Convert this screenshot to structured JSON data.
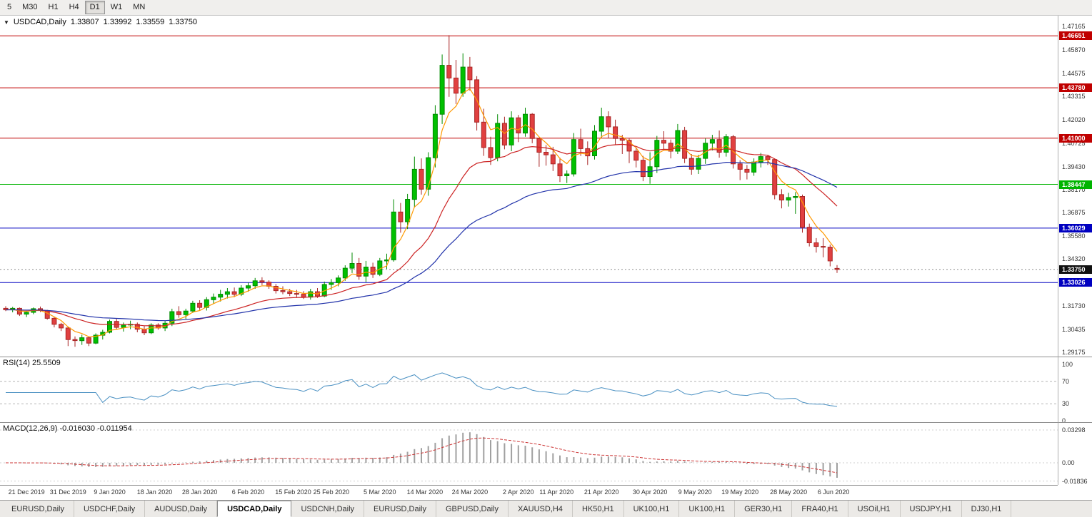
{
  "toolbar": {
    "timeframes": [
      {
        "label": "5",
        "active": false
      },
      {
        "label": "M30",
        "active": false
      },
      {
        "label": "H1",
        "active": false
      },
      {
        "label": "H4",
        "active": false
      },
      {
        "label": "D1",
        "active": true
      },
      {
        "label": "W1",
        "active": false
      },
      {
        "label": "MN",
        "active": false
      }
    ]
  },
  "chart_header": {
    "dropdown_icon": "▼",
    "symbol": "USDCAD,Daily",
    "open": "1.33807",
    "high": "1.33992",
    "low": "1.33559",
    "close": "1.33750"
  },
  "price_axis": {
    "ticks": [
      "1.47165",
      "1.45870",
      "1.44575",
      "1.43315",
      "1.42020",
      "1.40725",
      "1.39430",
      "1.38170",
      "1.36875",
      "1.35580",
      "1.34320",
      "1.31730",
      "1.30435",
      "1.29175"
    ]
  },
  "levels": [
    {
      "label": "1.46651",
      "value": 1.46651,
      "color": "#c00000"
    },
    {
      "label": "1.43780",
      "value": 1.4378,
      "color": "#c00000"
    },
    {
      "label": "1.41000",
      "value": 1.41,
      "color": "#c00000"
    },
    {
      "label": "1.38447",
      "value": 1.38447,
      "color": "#00b400"
    },
    {
      "label": "1.36029",
      "value": 1.36029,
      "color": "#0000c0"
    },
    {
      "label": "1.33026",
      "value": 1.33026,
      "color": "#0000c0"
    }
  ],
  "current_price": {
    "label": "1.33750",
    "value": 1.3375,
    "badge_color": "#111111"
  },
  "indicators": {
    "rsi": {
      "label": "RSI(14) 25.5509",
      "value": 25.5509,
      "axis": [
        {
          "label": "100",
          "value": 100
        },
        {
          "label": "70",
          "value": 70
        },
        {
          "label": "30",
          "value": 30
        },
        {
          "label": "0",
          "value": 0
        }
      ],
      "dashed_levels": [
        70,
        30
      ]
    },
    "macd": {
      "label": "MACD(12,26,9) -0.016030 -0.011954",
      "value": -0.01603,
      "signal": -0.011954,
      "axis": [
        {
          "label": "0.03298",
          "value": 0.03298
        },
        {
          "label": "0.00",
          "value": 0
        },
        {
          "label": "-0.01836",
          "value": -0.01836
        }
      ]
    }
  },
  "date_axis": [
    {
      "label": "21 Dec 2019",
      "i": 3
    },
    {
      "label": "31 Dec 2019",
      "i": 9
    },
    {
      "label": "9 Jan 2020",
      "i": 15
    },
    {
      "label": "18 Jan 2020",
      "i": 21.5
    },
    {
      "label": "28 Jan 2020",
      "i": 28
    },
    {
      "label": "6 Feb 2020",
      "i": 35
    },
    {
      "label": "15 Feb 2020",
      "i": 41.5
    },
    {
      "label": "25 Feb 2020",
      "i": 47
    },
    {
      "label": "5 Mar 2020",
      "i": 54
    },
    {
      "label": "14 Mar 2020",
      "i": 60.5
    },
    {
      "label": "24 Mar 2020",
      "i": 67
    },
    {
      "label": "2 Apr 2020",
      "i": 74
    },
    {
      "label": "11 Apr 2020",
      "i": 79.5
    },
    {
      "label": "21 Apr 2020",
      "i": 86
    },
    {
      "label": "30 Apr 2020",
      "i": 93
    },
    {
      "label": "9 May 2020",
      "i": 99.5
    },
    {
      "label": "19 May 2020",
      "i": 106
    },
    {
      "label": "28 May 2020",
      "i": 113
    },
    {
      "label": "6 Jun 2020",
      "i": 119.5
    }
  ],
  "tabs": [
    {
      "label": "EURUSD,Daily",
      "active": false
    },
    {
      "label": "USDCHF,Daily",
      "active": false
    },
    {
      "label": "AUDUSD,Daily",
      "active": false
    },
    {
      "label": "USDCAD,Daily",
      "active": true
    },
    {
      "label": "USDCNH,Daily",
      "active": false
    },
    {
      "label": "EURUSD,Daily",
      "active": false
    },
    {
      "label": "GBPUSD,Daily",
      "active": false
    },
    {
      "label": "XAUUSD,H4",
      "active": false
    },
    {
      "label": "HK50,H1",
      "active": false
    },
    {
      "label": "UK100,H1",
      "active": false
    },
    {
      "label": "UK100,H1",
      "active": false
    },
    {
      "label": "GER30,H1",
      "active": false
    },
    {
      "label": "FRA40,H1",
      "active": false
    },
    {
      "label": "USOil,H1",
      "active": false
    },
    {
      "label": "USDJPY,H1",
      "active": false
    },
    {
      "label": "DJ30,H1",
      "active": false
    }
  ],
  "colors": {
    "up": "#00c000",
    "up_border": "#008a00",
    "down": "#e04040",
    "down_border": "#a82525",
    "ma_fast": "#ff9900",
    "ma_mid": "#cc2222",
    "ma_slow": "#2233aa",
    "rsi_line": "#4a90c2",
    "macd_hist": "#a0a0a0",
    "macd_signal": "#cc3333",
    "current_line": "#909090"
  },
  "chart_data": {
    "type": "candlestick",
    "symbol": "USDCAD",
    "timeframe": "Daily",
    "title": "USDCAD,Daily 1.33807 1.33992 1.33559 1.33750",
    "ohlc_display": {
      "open": 1.33807,
      "high": 1.33992,
      "low": 1.33559,
      "close": 1.3375
    },
    "y_range": [
      1.2894,
      1.4776
    ],
    "x_range_dates": [
      "17 Dec 2019",
      "8 Jun 2020"
    ],
    "horizontal_levels": [
      1.46651,
      1.4378,
      1.41,
      1.38447,
      1.36029,
      1.33026
    ],
    "candles": [
      [
        1.316,
        1.3172,
        1.3145,
        1.3152
      ],
      [
        1.3152,
        1.3168,
        1.3138,
        1.316
      ],
      [
        1.316,
        1.3165,
        1.3118,
        1.3128
      ],
      [
        1.3128,
        1.3145,
        1.3112,
        1.3138
      ],
      [
        1.3138,
        1.3165,
        1.3128,
        1.3158
      ],
      [
        1.3158,
        1.317,
        1.314,
        1.3148
      ],
      [
        1.3148,
        1.3152,
        1.3098,
        1.3105
      ],
      [
        1.3105,
        1.3112,
        1.3055,
        1.3072
      ],
      [
        1.3072,
        1.308,
        1.3035,
        1.3052
      ],
      [
        1.3052,
        1.3058,
        1.2952,
        1.2988
      ],
      [
        1.2988,
        1.3005,
        1.2948,
        1.2982
      ],
      [
        1.2982,
        1.3015,
        1.2958,
        1.2998
      ],
      [
        1.2998,
        1.3005,
        1.2952,
        1.2968
      ],
      [
        1.2968,
        1.3022,
        1.2962,
        1.3012
      ],
      [
        1.3012,
        1.3042,
        1.2988,
        1.3028
      ],
      [
        1.3028,
        1.3098,
        1.3022,
        1.3088
      ],
      [
        1.3088,
        1.3102,
        1.3042,
        1.3055
      ],
      [
        1.3055,
        1.3082,
        1.3032,
        1.3068
      ],
      [
        1.3068,
        1.3092,
        1.3045,
        1.3072
      ],
      [
        1.3072,
        1.3082,
        1.3028,
        1.3045
      ],
      [
        1.3045,
        1.3062,
        1.3012,
        1.3025
      ],
      [
        1.3025,
        1.3078,
        1.3018,
        1.3068
      ],
      [
        1.3068,
        1.3078,
        1.3042,
        1.3052
      ],
      [
        1.3052,
        1.3092,
        1.3035,
        1.3078
      ],
      [
        1.3078,
        1.3158,
        1.3062,
        1.3142
      ],
      [
        1.3142,
        1.3172,
        1.3108,
        1.3125
      ],
      [
        1.3125,
        1.3158,
        1.3102,
        1.3145
      ],
      [
        1.3145,
        1.3202,
        1.3135,
        1.3188
      ],
      [
        1.3188,
        1.3205,
        1.3152,
        1.3165
      ],
      [
        1.3165,
        1.3222,
        1.3148,
        1.3208
      ],
      [
        1.3208,
        1.3242,
        1.3185,
        1.3222
      ],
      [
        1.3222,
        1.3262,
        1.3198,
        1.3238
      ],
      [
        1.3238,
        1.3272,
        1.3215,
        1.3252
      ],
      [
        1.3252,
        1.3275,
        1.3222,
        1.3238
      ],
      [
        1.3238,
        1.3288,
        1.3228,
        1.3272
      ],
      [
        1.3272,
        1.3302,
        1.3252,
        1.3285
      ],
      [
        1.3285,
        1.3328,
        1.3268,
        1.3312
      ],
      [
        1.3312,
        1.3332,
        1.3288,
        1.3305
      ],
      [
        1.3305,
        1.3315,
        1.3268,
        1.3282
      ],
      [
        1.3282,
        1.3295,
        1.3242,
        1.3258
      ],
      [
        1.3258,
        1.3282,
        1.3238,
        1.3252
      ],
      [
        1.3252,
        1.3268,
        1.3228,
        1.3242
      ],
      [
        1.3242,
        1.3262,
        1.3218,
        1.3238
      ],
      [
        1.3238,
        1.3255,
        1.3212,
        1.3222
      ],
      [
        1.3222,
        1.3268,
        1.3208,
        1.3252
      ],
      [
        1.3252,
        1.3272,
        1.3218,
        1.3228
      ],
      [
        1.3228,
        1.3308,
        1.3222,
        1.3292
      ],
      [
        1.3292,
        1.3322,
        1.3262,
        1.3302
      ],
      [
        1.3302,
        1.3342,
        1.3282,
        1.3328
      ],
      [
        1.3328,
        1.3398,
        1.3312,
        1.3382
      ],
      [
        1.3382,
        1.3468,
        1.3355,
        1.3408
      ],
      [
        1.3408,
        1.3438,
        1.3318,
        1.3338
      ],
      [
        1.3338,
        1.3422,
        1.3305,
        1.3388
      ],
      [
        1.3388,
        1.3412,
        1.3328,
        1.3348
      ],
      [
        1.3348,
        1.3438,
        1.3338,
        1.3422
      ],
      [
        1.3422,
        1.3462,
        1.3378,
        1.3428
      ],
      [
        1.3428,
        1.3762,
        1.3418,
        1.3692
      ],
      [
        1.3692,
        1.3742,
        1.3578,
        1.3638
      ],
      [
        1.3638,
        1.3792,
        1.3598,
        1.3762
      ],
      [
        1.3762,
        1.3998,
        1.3718,
        1.3928
      ],
      [
        1.3928,
        1.3988,
        1.3788,
        1.3818
      ],
      [
        1.3818,
        1.4022,
        1.3782,
        1.3992
      ],
      [
        1.3992,
        1.4282,
        1.3938,
        1.4232
      ],
      [
        1.4232,
        1.4562,
        1.4178,
        1.4502
      ],
      [
        1.4502,
        1.4668,
        1.4328,
        1.4432
      ],
      [
        1.4432,
        1.4532,
        1.4288,
        1.4348
      ],
      [
        1.4348,
        1.4568,
        1.4328,
        1.4492
      ],
      [
        1.4492,
        1.4548,
        1.4362,
        1.4422
      ],
      [
        1.4422,
        1.4442,
        1.4142,
        1.4188
      ],
      [
        1.4188,
        1.4262,
        1.4002,
        1.4048
      ],
      [
        1.4048,
        1.4108,
        1.3952,
        1.3992
      ],
      [
        1.3992,
        1.4232,
        1.3972,
        1.4182
      ],
      [
        1.4182,
        1.4218,
        1.4038,
        1.4062
      ],
      [
        1.4062,
        1.4248,
        1.4028,
        1.4212
      ],
      [
        1.4212,
        1.4228,
        1.4078,
        1.4128
      ],
      [
        1.4128,
        1.4268,
        1.4108,
        1.4232
      ],
      [
        1.4232,
        1.4238,
        1.4072,
        1.4098
      ],
      [
        1.4098,
        1.4102,
        1.3942,
        1.4022
      ],
      [
        1.4022,
        1.4062,
        1.3948,
        1.4008
      ],
      [
        1.4008,
        1.4052,
        1.3918,
        1.3958
      ],
      [
        1.3958,
        1.3992,
        1.3858,
        1.3892
      ],
      [
        1.3892,
        1.3922,
        1.3852,
        1.3902
      ],
      [
        1.3902,
        1.4128,
        1.3888,
        1.4092
      ],
      [
        1.4092,
        1.4152,
        1.4002,
        1.4042
      ],
      [
        1.4042,
        1.4082,
        1.3952,
        1.4002
      ],
      [
        1.4002,
        1.4172,
        1.3982,
        1.4138
      ],
      [
        1.4138,
        1.4268,
        1.4102,
        1.4218
      ],
      [
        1.4218,
        1.4248,
        1.4102,
        1.4162
      ],
      [
        1.4162,
        1.4202,
        1.4062,
        1.4098
      ],
      [
        1.4098,
        1.4118,
        1.4012,
        1.4088
      ],
      [
        1.4088,
        1.4098,
        1.3962,
        1.4028
      ],
      [
        1.4028,
        1.4048,
        1.3938,
        1.3978
      ],
      [
        1.3978,
        1.4002,
        1.3862,
        1.3888
      ],
      [
        1.3888,
        1.4022,
        1.3848,
        1.3942
      ],
      [
        1.3942,
        1.4112,
        1.3908,
        1.4088
      ],
      [
        1.4088,
        1.4138,
        1.4032,
        1.4072
      ],
      [
        1.4072,
        1.4092,
        1.3988,
        1.4028
      ],
      [
        1.4028,
        1.4178,
        1.4012,
        1.4142
      ],
      [
        1.4142,
        1.4162,
        1.3962,
        1.3988
      ],
      [
        1.3988,
        1.4012,
        1.3898,
        1.3928
      ],
      [
        1.3928,
        1.4008,
        1.3902,
        1.3988
      ],
      [
        1.3988,
        1.4098,
        1.3958,
        1.4072
      ],
      [
        1.4072,
        1.4118,
        1.4032,
        1.4092
      ],
      [
        1.4092,
        1.4142,
        1.3992,
        1.4022
      ],
      [
        1.4022,
        1.4122,
        1.3998,
        1.4108
      ],
      [
        1.4108,
        1.4118,
        1.3932,
        1.3958
      ],
      [
        1.3958,
        1.3978,
        1.3868,
        1.3928
      ],
      [
        1.3928,
        1.3952,
        1.3872,
        1.3912
      ],
      [
        1.3912,
        1.3988,
        1.3892,
        1.3968
      ],
      [
        1.3968,
        1.4018,
        1.3938,
        1.3998
      ],
      [
        1.3998,
        1.4008,
        1.3952,
        1.3982
      ],
      [
        1.3982,
        1.3988,
        1.3762,
        1.3788
      ],
      [
        1.3788,
        1.3818,
        1.3712,
        1.3758
      ],
      [
        1.3758,
        1.3798,
        1.3722,
        1.3772
      ],
      [
        1.3772,
        1.3802,
        1.3682,
        1.3778
      ],
      [
        1.3778,
        1.3788,
        1.3578,
        1.3608
      ],
      [
        1.3608,
        1.3628,
        1.3502,
        1.3522
      ],
      [
        1.3522,
        1.3548,
        1.3468,
        1.3502
      ],
      [
        1.3502,
        1.3548,
        1.3442,
        1.3498
      ],
      [
        1.3498,
        1.3512,
        1.3392,
        1.3422
      ],
      [
        1.33807,
        1.33992,
        1.33559,
        1.3375
      ]
    ]
  }
}
